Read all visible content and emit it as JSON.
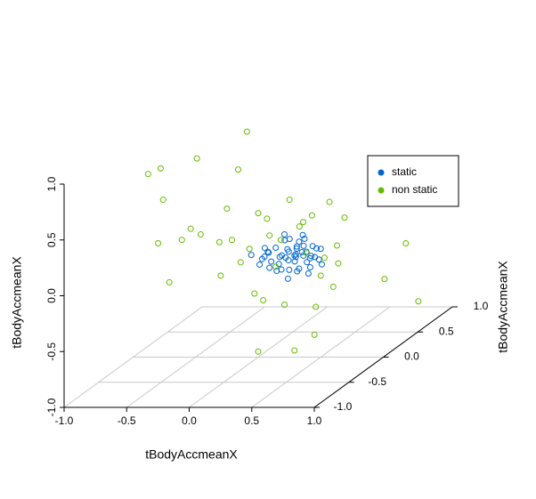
{
  "chart_data": {
    "type": "scatter3d",
    "xlabel": "tBodyAccmeanX",
    "ylabel": "tBodyAccmeanX",
    "zlabel": "tBodyAccmeanX",
    "xlim": [
      -1,
      1
    ],
    "ylim": [
      -1,
      1
    ],
    "zlim": [
      -1,
      1
    ],
    "xticks": [
      {
        "value": -1,
        "label": "-1.0"
      },
      {
        "value": -0.5,
        "label": "-0.5"
      },
      {
        "value": 0,
        "label": "0.0"
      },
      {
        "value": 0.5,
        "label": "0.5"
      },
      {
        "value": 1,
        "label": "1.0"
      }
    ],
    "yticks": [
      {
        "value": -1,
        "label": "-1.0"
      },
      {
        "value": -0.5,
        "label": "-0.5"
      },
      {
        "value": 0,
        "label": "0.0"
      },
      {
        "value": 0.5,
        "label": "0.5"
      },
      {
        "value": 1,
        "label": "1.0"
      }
    ],
    "zticks": [
      {
        "value": -1,
        "label": "-1.0"
      },
      {
        "value": -0.5,
        "label": "-0.5"
      },
      {
        "value": 0,
        "label": "0.0"
      },
      {
        "value": 0.5,
        "label": "0.5"
      },
      {
        "value": 1,
        "label": "1.0"
      }
    ],
    "grid": true,
    "legend_position": "topright",
    "series": [
      {
        "name": "static",
        "color": "#0066cc",
        "x": [
          0.3,
          0.28,
          0.32,
          0.35,
          0.25,
          0.22,
          0.38,
          0.4,
          0.31,
          0.27,
          0.33,
          0.36,
          0.29,
          0.24,
          0.42,
          0.45,
          0.2,
          0.18,
          0.15,
          0.1,
          0.05,
          0.0,
          -0.05,
          0.12,
          0.08,
          0.48,
          0.5,
          0.52,
          0.34,
          0.26,
          0.3,
          0.37,
          0.41,
          0.23,
          0.19,
          0.14,
          0.44,
          0.39,
          0.21,
          0.16,
          0.11,
          0.06,
          0.32,
          0.28,
          0.35,
          0.43,
          0.47,
          0.02,
          0.09,
          0.25
        ],
        "y": [
          0.0,
          0.05,
          -0.05,
          0.02,
          -0.03,
          0.04,
          0.01,
          -0.02,
          0.03,
          -0.04,
          0.06,
          -0.06,
          0.0,
          0.02,
          -0.01,
          0.03,
          -0.02,
          0.01,
          0.04,
          -0.03,
          0.0,
          0.02,
          -0.01,
          0.05,
          -0.05,
          0.01,
          0.0,
          -0.02,
          0.03,
          -0.04,
          0.02,
          0.0,
          0.01,
          -0.02,
          0.04,
          0.0,
          -0.03,
          0.02,
          0.0,
          0.01,
          -0.01,
          0.03,
          -0.02,
          0.04,
          0.0,
          0.01,
          -0.03,
          0.02,
          0.0,
          -0.01
        ],
        "z": [
          -0.08,
          -0.05,
          -0.12,
          -0.1,
          -0.02,
          -0.15,
          -0.06,
          -0.14,
          0.02,
          -0.2,
          -0.03,
          -0.18,
          -0.09,
          0.05,
          -0.11,
          -0.04,
          -0.08,
          -0.22,
          -0.12,
          -0.05,
          -0.1,
          -0.18,
          -0.08,
          -0.25,
          0.0,
          -0.13,
          -0.03,
          -0.16,
          0.08,
          -0.28,
          -0.24,
          0.06,
          -0.2,
          -0.1,
          0.03,
          -0.02,
          -0.08,
          -0.26,
          0.1,
          -0.17,
          -0.14,
          -0.07,
          0.0,
          -0.12,
          -0.06,
          -0.01,
          -0.09,
          -0.13,
          -0.2,
          -0.05
        ]
      },
      {
        "name": "non static",
        "color": "#66bb00",
        "x": [
          -0.09,
          -0.88,
          -0.78,
          -0.49,
          -0.16,
          -0.76,
          -0.8,
          -0.71,
          -0.61,
          -0.54,
          -0.46,
          -0.31,
          -0.21,
          -0.3,
          -0.25,
          0.0,
          0.29,
          0.45,
          1.01,
          1.18,
          1.28,
          0.25,
          0.57,
          0.69,
          0.63,
          0.64,
          0.04,
          0.21,
          0.46,
          0.6,
          0.36,
          0.07,
          0.0,
          0.43,
          0.14,
          -0.14,
          0.5,
          -0.07,
          0.39,
          0.33,
          0.09,
          -0.03,
          0.53,
          0.18
        ],
        "y": [
          0,
          0,
          0,
          0,
          0,
          0,
          0,
          0,
          0,
          0,
          0,
          0,
          0,
          0,
          0,
          0,
          0,
          0,
          0,
          0,
          0,
          0,
          0,
          0,
          0,
          0,
          0,
          0,
          0,
          0,
          0,
          0,
          0,
          0,
          0,
          0,
          0,
          0,
          0,
          0,
          0,
          0,
          0,
          0
        ],
        "z": [
          1.02,
          0.64,
          0.69,
          0.78,
          0.68,
          0.41,
          0.02,
          -0.33,
          0.05,
          0.15,
          0.1,
          0.03,
          0.05,
          -0.27,
          0.33,
          -0.95,
          -0.94,
          -0.8,
          -0.3,
          0.02,
          -0.5,
          0.41,
          0.39,
          0.25,
          0.0,
          -0.16,
          -0.49,
          -0.53,
          -0.55,
          -0.37,
          0.21,
          0.24,
          0.29,
          0.27,
          -0.19,
          -0.15,
          -0.27,
          -0.03,
          -0.07,
          0.17,
          0.09,
          -0.43,
          -0.11,
          0.05
        ]
      }
    ]
  }
}
